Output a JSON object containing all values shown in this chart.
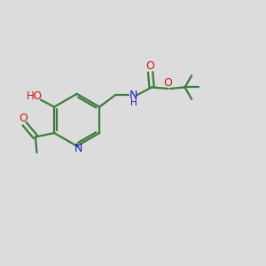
{
  "bg_color": "#dcdcdc",
  "bond_color": "#3d7a3d",
  "n_color": "#1a1acc",
  "o_color": "#cc1a1a",
  "line_width": 1.6,
  "figsize": [
    3.0,
    3.0
  ],
  "dpi": 100,
  "xlim": [
    0,
    10
  ],
  "ylim": [
    0,
    10
  ]
}
